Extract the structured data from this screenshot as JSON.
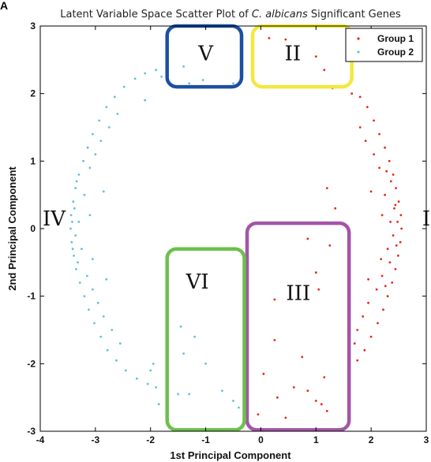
{
  "corner_letter": "A",
  "chart_data": {
    "type": "scatter",
    "title_parts": [
      "Latent Variable Space Scatter Plot of ",
      "C. albicans",
      " Significant Genes"
    ],
    "xlabel": "1st Principal Component",
    "ylabel": "2nd Principal Component",
    "xlim": [
      -4,
      3
    ],
    "ylim": [
      -3,
      3
    ],
    "xticks": [
      -4,
      -3,
      -2,
      -1,
      0,
      1,
      2,
      3
    ],
    "yticks": [
      -3,
      -2,
      -1,
      0,
      1,
      2,
      3
    ],
    "grid": false,
    "legend": {
      "position": "top-right",
      "entries": [
        {
          "label": "Group 1",
          "color": "#e8261c"
        },
        {
          "label": "Group 2",
          "color": "#5bc4d4"
        }
      ]
    },
    "series": [
      {
        "name": "Group 1",
        "color": "#e8261c",
        "points": [
          [
            2.55,
            0.0
          ],
          [
            2.54,
            0.2
          ],
          [
            2.53,
            -0.2
          ],
          [
            2.5,
            0.4
          ],
          [
            2.49,
            -0.4
          ],
          [
            2.45,
            0.6
          ],
          [
            2.44,
            -0.6
          ],
          [
            2.4,
            0.8
          ],
          [
            2.38,
            -0.8
          ],
          [
            2.33,
            1.0
          ],
          [
            2.3,
            -1.0
          ],
          [
            2.25,
            1.2
          ],
          [
            2.22,
            -1.2
          ],
          [
            2.15,
            1.4
          ],
          [
            2.12,
            -1.4
          ],
          [
            2.05,
            1.6
          ],
          [
            2.0,
            -1.6
          ],
          [
            1.93,
            1.8
          ],
          [
            1.88,
            -1.8
          ],
          [
            1.8,
            1.95
          ],
          [
            1.75,
            -1.95
          ],
          [
            2.35,
            0.1
          ],
          [
            2.3,
            -0.3
          ],
          [
            2.25,
            0.5
          ],
          [
            2.2,
            -0.7
          ],
          [
            2.15,
            0.9
          ],
          [
            2.1,
            -0.9
          ],
          [
            2.05,
            1.1
          ],
          [
            1.95,
            -1.1
          ],
          [
            1.9,
            1.3
          ],
          [
            1.85,
            -1.3
          ],
          [
            1.8,
            1.5
          ],
          [
            1.75,
            -1.5
          ],
          [
            1.7,
            -1.7
          ],
          [
            2.42,
            0.3
          ],
          [
            2.4,
            -0.1
          ],
          [
            2.36,
            0.7
          ],
          [
            2.34,
            -0.5
          ],
          [
            2.28,
            0.85
          ],
          [
            2.26,
            -0.85
          ],
          [
            2.48,
            0.1
          ],
          [
            2.46,
            -0.25
          ],
          [
            2.44,
            0.35
          ],
          [
            2.2,
            0.2
          ],
          [
            2.18,
            -0.45
          ],
          [
            2.0,
            0.55
          ],
          [
            1.95,
            -0.75
          ],
          [
            1.6,
            -2.05
          ],
          [
            1.65,
            2.0
          ],
          [
            0.15,
            2.82
          ],
          [
            0.45,
            2.8
          ],
          [
            1.0,
            2.55
          ],
          [
            1.15,
            2.35
          ],
          [
            1.3,
            2.08
          ],
          [
            1.2,
            0.6
          ],
          [
            1.35,
            0.3
          ],
          [
            1.25,
            -0.25
          ],
          [
            0.85,
            -0.15
          ],
          [
            1.0,
            -0.65
          ],
          [
            1.05,
            -0.9
          ],
          [
            0.25,
            -1.05
          ],
          [
            0.25,
            -1.65
          ],
          [
            0.75,
            -1.9
          ],
          [
            0.05,
            -2.15
          ],
          [
            1.15,
            -2.2
          ],
          [
            0.6,
            -2.35
          ],
          [
            0.85,
            -2.4
          ],
          [
            1.0,
            -2.55
          ],
          [
            1.1,
            -2.6
          ],
          [
            0.3,
            -2.5
          ],
          [
            -0.05,
            -2.75
          ],
          [
            0.45,
            -2.8
          ],
          [
            1.2,
            -2.7
          ]
        ]
      },
      {
        "name": "Group 2",
        "color": "#5bc4d4",
        "points": [
          [
            -3.45,
            0.0
          ],
          [
            -3.44,
            0.2
          ],
          [
            -3.43,
            -0.2
          ],
          [
            -3.4,
            0.4
          ],
          [
            -3.39,
            -0.4
          ],
          [
            -3.36,
            0.6
          ],
          [
            -3.35,
            -0.6
          ],
          [
            -3.3,
            0.8
          ],
          [
            -3.28,
            -0.8
          ],
          [
            -3.22,
            1.0
          ],
          [
            -3.2,
            -1.0
          ],
          [
            -3.14,
            1.2
          ],
          [
            -3.12,
            -1.2
          ],
          [
            -3.05,
            1.4
          ],
          [
            -3.02,
            -1.4
          ],
          [
            -2.93,
            1.6
          ],
          [
            -2.9,
            -1.6
          ],
          [
            -2.8,
            1.8
          ],
          [
            -2.78,
            -1.8
          ],
          [
            -2.65,
            1.95
          ],
          [
            -2.62,
            -1.95
          ],
          [
            -2.48,
            2.1
          ],
          [
            -2.45,
            -2.1
          ],
          [
            -2.28,
            2.22
          ],
          [
            -2.25,
            -2.22
          ],
          [
            -2.1,
            2.3
          ],
          [
            -2.05,
            -2.3
          ],
          [
            -3.3,
            0.1
          ],
          [
            -3.25,
            -0.3
          ],
          [
            -3.2,
            0.5
          ],
          [
            -3.15,
            -0.7
          ],
          [
            -3.1,
            0.9
          ],
          [
            -3.05,
            -0.9
          ],
          [
            -3.0,
            1.1
          ],
          [
            -2.95,
            -1.1
          ],
          [
            -2.9,
            1.3
          ],
          [
            -2.85,
            -1.3
          ],
          [
            -2.75,
            1.5
          ],
          [
            -2.7,
            -1.5
          ],
          [
            -2.6,
            1.7
          ],
          [
            -2.55,
            -1.7
          ],
          [
            -3.38,
            0.3
          ],
          [
            -3.36,
            -0.1
          ],
          [
            -3.34,
            0.7
          ],
          [
            -3.32,
            -0.5
          ],
          [
            -3.42,
            0.1
          ],
          [
            -3.41,
            -0.3
          ],
          [
            -3.1,
            0.2
          ],
          [
            -3.05,
            -0.45
          ],
          [
            -2.85,
            0.55
          ],
          [
            -2.8,
            -0.75
          ],
          [
            -1.8,
            2.25
          ],
          [
            -1.7,
            2.2
          ],
          [
            -1.4,
            2.4
          ],
          [
            -1.3,
            2.15
          ],
          [
            -1.05,
            2.2
          ],
          [
            -0.5,
            2.15
          ],
          [
            -1.9,
            2.35
          ],
          [
            -2.1,
            1.9
          ],
          [
            -1.95,
            -2.0
          ],
          [
            -2.0,
            -2.1
          ],
          [
            -1.9,
            -2.35
          ],
          [
            -1.85,
            -2.6
          ],
          [
            -1.5,
            -2.45
          ],
          [
            -1.45,
            -1.45
          ],
          [
            -1.4,
            -1.85
          ],
          [
            -1.3,
            -2.45
          ],
          [
            -1.0,
            -2.0
          ],
          [
            -0.7,
            -2.4
          ],
          [
            -0.5,
            -2.55
          ],
          [
            -0.3,
            -1.9
          ],
          [
            -0.4,
            -2.65
          ],
          [
            -1.2,
            -1.6
          ]
        ]
      }
    ],
    "regions": [
      {
        "label": "I",
        "color": null,
        "x": 3.0,
        "y": 0.15
      },
      {
        "label": "II",
        "color": "#f2e840",
        "x": 0.58,
        "y": 2.6,
        "box": [
          -0.15,
          1.65,
          2.1,
          3.0
        ]
      },
      {
        "label": "III",
        "color": "#a455a8",
        "x": 0.68,
        "y": -0.95,
        "box": [
          -0.25,
          1.6,
          -2.98,
          0.08
        ]
      },
      {
        "label": "IV",
        "color": null,
        "x": -3.75,
        "y": 0.15,
        "box": null
      },
      {
        "label": "V",
        "color": "#1c4fa0",
        "x": -1.0,
        "y": 2.6,
        "box": [
          -1.7,
          -0.35,
          2.1,
          3.0
        ]
      },
      {
        "label": "VI",
        "color": "#6cc04a",
        "x": -1.15,
        "y": -0.78,
        "box": [
          -1.7,
          -0.3,
          -2.98,
          -0.3
        ]
      }
    ]
  }
}
